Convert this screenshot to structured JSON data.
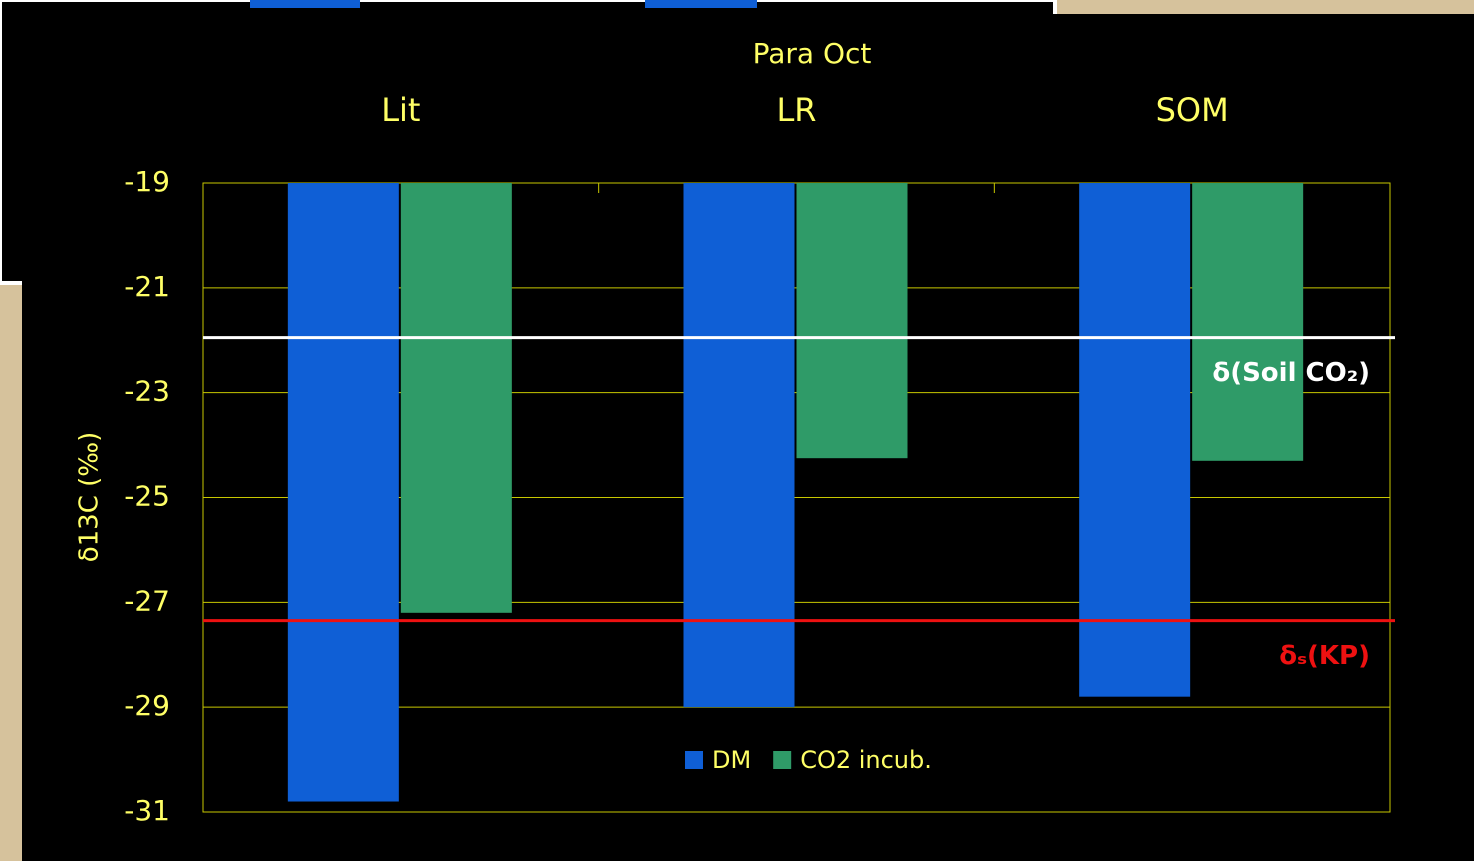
{
  "chart_data": {
    "type": "bar",
    "title": "Para Oct",
    "categories": [
      "Lit",
      "LR",
      "SOM"
    ],
    "series": [
      {
        "name": "DM",
        "color": "#0f5fd6",
        "values": [
          -30.8,
          -29.0,
          -28.8
        ]
      },
      {
        "name": "CO2 incub.",
        "color": "#2f9b68",
        "values": [
          -27.2,
          -24.25,
          -24.3
        ]
      }
    ],
    "y_label": "δ13C (‰)",
    "ylim": [
      -31,
      -19
    ],
    "yticks": [
      -31,
      -29,
      -27,
      -25,
      -23,
      -21,
      -19
    ],
    "grid": true,
    "reference_lines": [
      {
        "label": "δ(Soil CO₂)",
        "value": -21.95,
        "color": "#ffffff"
      },
      {
        "label": "δₛ(KP)",
        "value": -27.35,
        "color": "#ee1111"
      }
    ],
    "legend": "bottom"
  }
}
